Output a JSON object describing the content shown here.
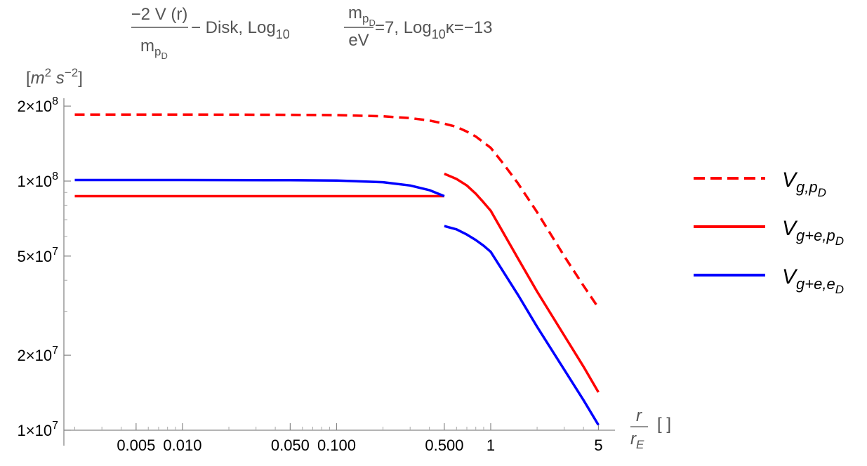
{
  "chart_data": {
    "type": "line",
    "title": {
      "fraction_numerator": "−2 V (r)",
      "fraction_denominator": "m",
      "fraction_denominator_sub": "p",
      "fraction_denominator_subsub": "D",
      "text_after": " − Disk, Log",
      "log_sub": "10",
      "mass_fraction_numerator": "m",
      "mass_fraction_numerator_sub": "p",
      "mass_fraction_numerator_subsub": "D",
      "mass_fraction_denominator": "eV",
      "mass_value_text": "=7, Log",
      "kappa_log_sub": "10",
      "kappa_text": "κ=−13"
    },
    "ylabel": {
      "open": "[",
      "m": "m",
      "m_exp": "2",
      "s": " s",
      "s_exp": "−2",
      "close": "]"
    },
    "xlabel": {
      "numerator": "r",
      "denominator": "r",
      "denominator_sub": "E",
      "units": "[ ]"
    },
    "x_scale": "log",
    "y_scale": "log",
    "xlim": [
      0.0017,
      5.3
    ],
    "ylim": [
      10000000,
      215000000
    ],
    "x_ticks": [
      {
        "value": 0.005,
        "label": "0.005"
      },
      {
        "value": 0.01,
        "label": "0.010"
      },
      {
        "value": 0.05,
        "label": "0.050"
      },
      {
        "value": 0.1,
        "label": "0.100"
      },
      {
        "value": 0.5,
        "label": "0.500"
      },
      {
        "value": 1,
        "label": "1"
      },
      {
        "value": 5,
        "label": "5"
      }
    ],
    "y_ticks": [
      {
        "value": 10000000,
        "mantissa": "1×10",
        "exponent": "7"
      },
      {
        "value": 20000000,
        "mantissa": "2×10",
        "exponent": "7"
      },
      {
        "value": 50000000,
        "mantissa": "5×10",
        "exponent": "7"
      },
      {
        "value": 100000000,
        "mantissa": "1×10",
        "exponent": "8"
      },
      {
        "value": 200000000,
        "mantissa": "2×10",
        "exponent": "8"
      }
    ],
    "grid": false,
    "legend_position": "right",
    "series": [
      {
        "name": "V_{g,p_D}",
        "legend_main": "V",
        "legend_sub": "g,p",
        "legend_subsub": "D",
        "color": "#ff0000",
        "dashed": true,
        "x": [
          0.002,
          0.01,
          0.05,
          0.1,
          0.2,
          0.3,
          0.4,
          0.5,
          0.6,
          0.7,
          0.8,
          1.0,
          1.2,
          1.5,
          2.0,
          3.0,
          4.0,
          5.0
        ],
        "y": [
          185000000,
          185000000,
          184500000,
          184000000,
          182000000,
          179000000,
          175000000,
          170000000,
          165000000,
          158000000,
          151000000,
          136000000,
          118000000,
          98000000,
          75000000,
          50000000,
          38000000,
          31000000
        ]
      },
      {
        "name": "V_{g+e,p_D}",
        "legend_main": "V",
        "legend_sub": "g+e,p",
        "legend_subsub": "D",
        "color": "#ff0000",
        "dashed": false,
        "segments": [
          {
            "x": [
              0.002,
              0.5
            ],
            "y": [
              87000000,
              87000000
            ]
          },
          {
            "x": [
              0.5,
              0.6,
              0.7,
              0.8,
              0.9,
              1.0,
              1.5,
              2.0,
              3.0,
              4.0,
              5.0
            ],
            "y": [
              107000000,
              102000000,
              96000000,
              89000000,
              82000000,
              76000000,
              49000000,
              36000000,
              24000000,
              18000000,
              14200000
            ]
          }
        ]
      },
      {
        "name": "V_{g+e,e_D}",
        "legend_main": "V",
        "legend_sub": "g+e,e",
        "legend_subsub": "D",
        "color": "#0000ff",
        "dashed": false,
        "segments": [
          {
            "x": [
              0.002,
              0.01,
              0.05,
              0.1,
              0.2,
              0.3,
              0.4,
              0.5
            ],
            "y": [
              101000000,
              101000000,
              100800000,
              100500000,
              99000000,
              96000000,
              92000000,
              87000000
            ]
          },
          {
            "x": [
              0.5,
              0.6,
              0.7,
              0.8,
              0.9,
              1.0,
              1.5,
              2.0,
              3.0,
              4.0,
              5.0
            ],
            "y": [
              66000000,
              64000000,
              61000000,
              58000000,
              55000000,
              52000000,
              35000000,
              26000000,
              17500000,
              13200000,
              10500000
            ]
          }
        ]
      }
    ]
  }
}
